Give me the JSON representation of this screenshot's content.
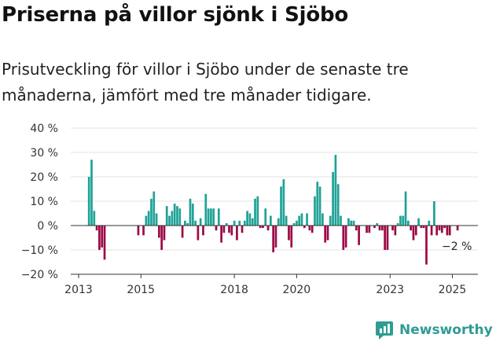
{
  "chart_data": {
    "type": "bar",
    "title": "Priserna på villor sjönk i Sjöbo",
    "subtitle": "Prisutveckling för villor i Sjöbo under de senaste tre månaderna, jämfört med tre månader tidigare.",
    "x_start": "2013-01",
    "x_end": "2025-06",
    "ylim": [
      -20,
      40
    ],
    "yticks": [
      -20,
      -10,
      0,
      10,
      20,
      30,
      40
    ],
    "ytick_labels": [
      "−20 %",
      "−10 %",
      "0 %",
      "10 %",
      "20 %",
      "30 %",
      "40 %"
    ],
    "xtick_labels": [
      "2013",
      "2015",
      "2018",
      "2020",
      "2023",
      "2025"
    ],
    "xtick_years": [
      2013,
      2015,
      2018,
      2020,
      2023,
      2025
    ],
    "grid": true,
    "colors": {
      "positive": "#1fa296",
      "negative": "#9b0a46"
    },
    "last_label": "−2 %",
    "points": [
      [
        "2013-05",
        20
      ],
      [
        "2013-06",
        27
      ],
      [
        "2013-07",
        6
      ],
      [
        "2013-08",
        -2
      ],
      [
        "2013-09",
        -10
      ],
      [
        "2013-10",
        -9
      ],
      [
        "2013-11",
        -14
      ],
      [
        "2014-12",
        -4
      ],
      [
        "2015-02",
        -4
      ],
      [
        "2015-03",
        4
      ],
      [
        "2015-04",
        6
      ],
      [
        "2015-05",
        11
      ],
      [
        "2015-06",
        14
      ],
      [
        "2015-07",
        5
      ],
      [
        "2015-08",
        -5
      ],
      [
        "2015-09",
        -10
      ],
      [
        "2015-10",
        -6
      ],
      [
        "2015-11",
        8
      ],
      [
        "2015-12",
        4
      ],
      [
        "2016-01",
        6
      ],
      [
        "2016-02",
        9
      ],
      [
        "2016-03",
        8
      ],
      [
        "2016-04",
        7
      ],
      [
        "2016-05",
        -5
      ],
      [
        "2016-06",
        2
      ],
      [
        "2016-07",
        1
      ],
      [
        "2016-08",
        11
      ],
      [
        "2016-09",
        9
      ],
      [
        "2016-10",
        2
      ],
      [
        "2016-11",
        -6
      ],
      [
        "2016-12",
        3
      ],
      [
        "2017-01",
        -4
      ],
      [
        "2017-02",
        13
      ],
      [
        "2017-03",
        7
      ],
      [
        "2017-04",
        7
      ],
      [
        "2017-05",
        7
      ],
      [
        "2017-06",
        -2
      ],
      [
        "2017-07",
        7
      ],
      [
        "2017-08",
        -7
      ],
      [
        "2017-09",
        -3
      ],
      [
        "2017-10",
        1
      ],
      [
        "2017-11",
        -3
      ],
      [
        "2017-12",
        -4
      ],
      [
        "2018-01",
        2
      ],
      [
        "2018-02",
        -6
      ],
      [
        "2018-03",
        2
      ],
      [
        "2018-04",
        -3
      ],
      [
        "2018-05",
        2
      ],
      [
        "2018-06",
        6
      ],
      [
        "2018-07",
        5
      ],
      [
        "2018-08",
        3
      ],
      [
        "2018-09",
        11
      ],
      [
        "2018-10",
        12
      ],
      [
        "2018-11",
        -1
      ],
      [
        "2018-12",
        -1
      ],
      [
        "2019-01",
        7
      ],
      [
        "2019-02",
        -2
      ],
      [
        "2019-03",
        4
      ],
      [
        "2019-04",
        -11
      ],
      [
        "2019-05",
        -9
      ],
      [
        "2019-06",
        3
      ],
      [
        "2019-07",
        16
      ],
      [
        "2019-08",
        19
      ],
      [
        "2019-09",
        4
      ],
      [
        "2019-10",
        -6
      ],
      [
        "2019-11",
        -9
      ],
      [
        "2019-12",
        1
      ],
      [
        "2020-01",
        2
      ],
      [
        "2020-02",
        4
      ],
      [
        "2020-03",
        5
      ],
      [
        "2020-04",
        -1
      ],
      [
        "2020-05",
        5
      ],
      [
        "2020-06",
        -2
      ],
      [
        "2020-07",
        -3
      ],
      [
        "2020-08",
        12
      ],
      [
        "2020-09",
        18
      ],
      [
        "2020-10",
        16
      ],
      [
        "2020-11",
        5
      ],
      [
        "2020-12",
        -7
      ],
      [
        "2021-01",
        -6
      ],
      [
        "2021-02",
        4
      ],
      [
        "2021-03",
        22
      ],
      [
        "2021-04",
        29
      ],
      [
        "2021-05",
        17
      ],
      [
        "2021-06",
        4
      ],
      [
        "2021-07",
        -10
      ],
      [
        "2021-08",
        -9
      ],
      [
        "2021-09",
        3
      ],
      [
        "2021-10",
        2
      ],
      [
        "2021-11",
        2
      ],
      [
        "2021-12",
        -2
      ],
      [
        "2022-01",
        -8
      ],
      [
        "2022-04",
        -3
      ],
      [
        "2022-05",
        -3
      ],
      [
        "2022-07",
        -1
      ],
      [
        "2022-08",
        1
      ],
      [
        "2022-09",
        -2
      ],
      [
        "2022-10",
        -2
      ],
      [
        "2022-11",
        -10
      ],
      [
        "2022-12",
        -10
      ],
      [
        "2023-02",
        -2
      ],
      [
        "2023-03",
        -4
      ],
      [
        "2023-04",
        1
      ],
      [
        "2023-05",
        4
      ],
      [
        "2023-06",
        4
      ],
      [
        "2023-07",
        14
      ],
      [
        "2023-08",
        2
      ],
      [
        "2023-09",
        -2
      ],
      [
        "2023-10",
        -6
      ],
      [
        "2023-11",
        -4
      ],
      [
        "2023-12",
        3
      ],
      [
        "2024-01",
        -1
      ],
      [
        "2024-02",
        -1
      ],
      [
        "2024-03",
        -16
      ],
      [
        "2024-04",
        2
      ],
      [
        "2024-05",
        -4
      ],
      [
        "2024-06",
        10
      ],
      [
        "2024-07",
        -4
      ],
      [
        "2024-08",
        -2
      ],
      [
        "2024-09",
        -3
      ],
      [
        "2024-10",
        -1
      ],
      [
        "2024-11",
        -4
      ],
      [
        "2024-12",
        -4
      ],
      [
        "2025-03",
        -2
      ]
    ]
  },
  "branding": {
    "logo_text": "Newsworthy",
    "logo_icon": "bar-chart-icon",
    "logo_color": "#2e9c94"
  }
}
